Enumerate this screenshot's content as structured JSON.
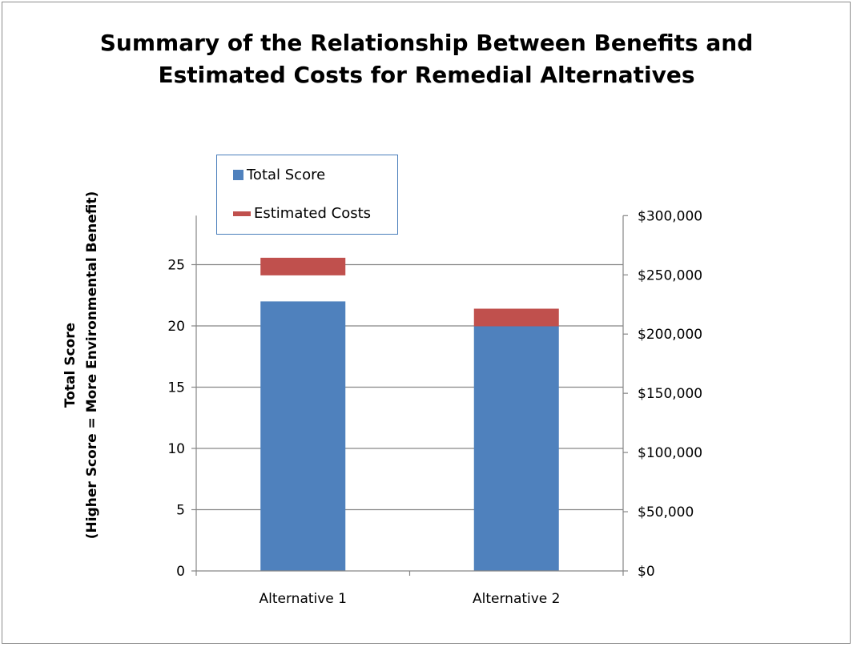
{
  "chart_data": {
    "type": "bar",
    "title": [
      "Summary of the Relationship Between Benefits and",
      "Estimated Costs for Remedial Alternatives"
    ],
    "categories": [
      "Alternative 1",
      "Alternative 2"
    ],
    "series": [
      {
        "name": "Total Score",
        "axis": "left",
        "kind": "bar",
        "values": [
          22,
          20
        ],
        "color": "#4f81bd"
      },
      {
        "name": "Estimated Costs",
        "axis": "right",
        "kind": "marker",
        "values": [
          257000,
          214000
        ],
        "color": "#c0504d"
      }
    ],
    "y_left": {
      "label_lines": [
        "Total Score",
        "(Higher Score = More Environmental Benefit)"
      ],
      "range": [
        0,
        29
      ],
      "ticks": [
        0,
        5,
        10,
        15,
        20,
        25
      ],
      "tick_labels": [
        "0",
        "5",
        "10",
        "15",
        "20",
        "25"
      ]
    },
    "y_right": {
      "range": [
        0,
        300000
      ],
      "ticks": [
        0,
        50000,
        100000,
        150000,
        200000,
        250000,
        300000
      ],
      "tick_labels": [
        "$0",
        "$50,000",
        "$100,000",
        "$150,000",
        "$200,000",
        "$250,000",
        "$300,000"
      ]
    },
    "grid": true,
    "legend_position": "top-left"
  }
}
